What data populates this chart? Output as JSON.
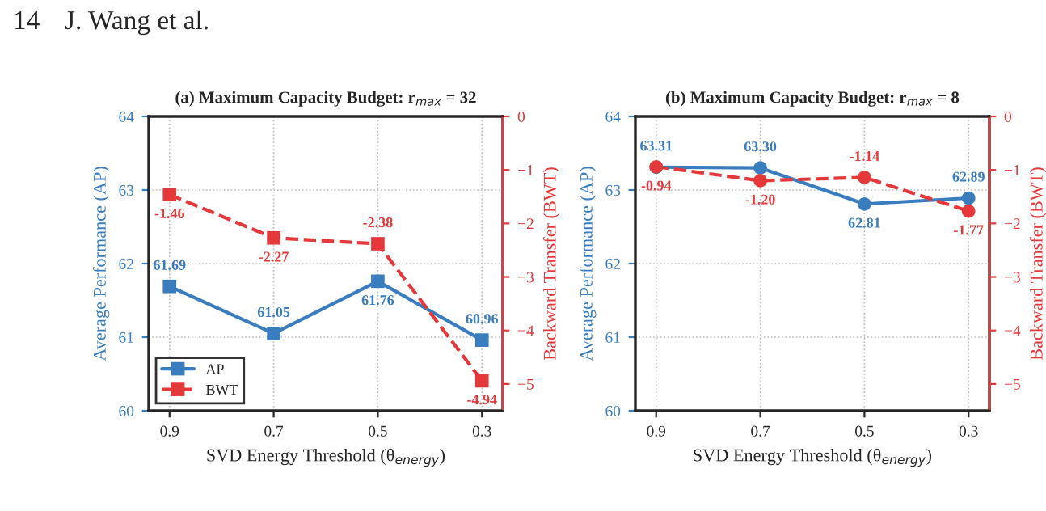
{
  "chart_data": [
    {
      "type": "line",
      "title": "(a) Maximum Capacity Budget: r$_{max}$ = 32",
      "xlabel": "SVD Energy Threshold (θ$_{energy}$)",
      "ylabel": "Average Performance (AP)",
      "y2label": "Backward Transfer (BWT)",
      "annotations": [
        "14",
        "J. Wang et al."
      ],
      "categories": [
        "0.9",
        "0.7",
        "0.5",
        "0.3"
      ],
      "series": [
        {
          "name": "AP",
          "color": "#3a7dbf",
          "values": [
            61.69,
            61.05,
            61.76,
            60.96
          ],
          "marker": "square",
          "line_style": "solid"
        },
        {
          "name": "BWT",
          "color": "#e5383b",
          "values": [
            -1.46,
            -2.27,
            -2.38,
            -4.94
          ],
          "axis": "y2",
          "marker": "square",
          "line_style": "dashed"
        }
      ],
      "ylim": [
        60,
        64
      ],
      "yticks": [
        60,
        61,
        62,
        63,
        64
      ],
      "y2lim": [
        -5.5,
        0
      ],
      "y2ticks": [
        0,
        {
          "value": -1,
          "label": "−1"
        },
        {
          "value": -2,
          "label": "−2"
        },
        {
          "value": -3,
          "label": "−3"
        },
        {
          "value": -4,
          "label": "−4"
        },
        {
          "value": -5,
          "label": "−5"
        }
      ],
      "data_labels": true,
      "grid": true,
      "legend": "bottom left"
    },
    {
      "type": "line",
      "title": "(b) Maximum Capacity Budget: r$_{max}$ = 8",
      "xlabel": "SVD Energy Threshold (θ$_{energy}$)",
      "ylabel": "Average Performance (AP)",
      "y2label": "Backward Transfer (BWT)",
      "categories": [
        "0.9",
        "0.7",
        "0.5",
        "0.3"
      ],
      "series": [
        {
          "color": "#3a7dbf",
          "values": [
            63.31,
            63.3,
            62.81,
            62.89
          ],
          "value_labels": [
            "63.31",
            "63.30",
            "62.81",
            "62.89"
          ],
          "marker": "circle",
          "line_style": "solid"
        },
        {
          "color": "#e5383b",
          "values": [
            -0.94,
            -1.2,
            -1.14,
            -1.77
          ],
          "value_labels": [
            "-0.94",
            "-1.20",
            "-1.14",
            "-1.77"
          ],
          "axis": "y2",
          "marker": "circle",
          "line_style": "dashed"
        }
      ],
      "ylim": [
        60,
        64
      ],
      "yticks": [
        60,
        61,
        62,
        63,
        64
      ],
      "y2lim": [
        -5.5,
        0
      ],
      "y2ticks": [
        0,
        {
          "value": -1,
          "label": "−1"
        },
        {
          "value": -2,
          "label": "−2"
        },
        {
          "value": -3,
          "label": "−3"
        },
        {
          "value": -4,
          "label": "−4"
        },
        {
          "value": -5,
          "label": "−5"
        }
      ],
      "grid": true,
      "legend": false
    }
  ]
}
